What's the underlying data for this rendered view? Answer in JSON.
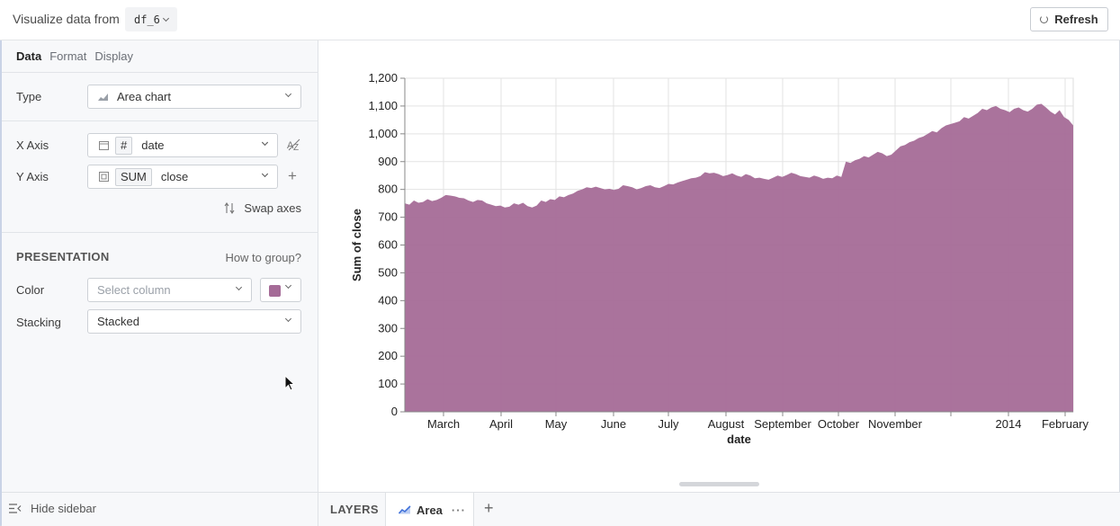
{
  "header": {
    "title": "Visualize data from",
    "dataframe": "df_6",
    "refresh_label": "Refresh"
  },
  "sidebar": {
    "tabs": [
      {
        "label": "Data",
        "active": true
      },
      {
        "label": "Format",
        "active": false
      },
      {
        "label": "Display",
        "active": false
      }
    ],
    "type_label": "Type",
    "type_value": "Area chart",
    "x_axis": {
      "label": "X Axis",
      "type_symbol": "#",
      "column": "date"
    },
    "y_axis": {
      "label": "Y Axis",
      "aggregation": "SUM",
      "column": "close"
    },
    "swap_axes_label": "Swap axes",
    "presentation_heading": "PRESENTATION",
    "how_to_group": "How to group?",
    "color_label": "Color",
    "color_placeholder": "Select column",
    "color_value": "#a56b97",
    "stacking_label": "Stacking",
    "stacking_value": "Stacked"
  },
  "bottom": {
    "hide_sidebar": "Hide sidebar",
    "layers_label": "LAYERS",
    "layer_name": "Area"
  },
  "chart_data": {
    "type": "area",
    "title": "",
    "xlabel": "date",
    "ylabel": "Sum of close",
    "ylim": [
      0,
      1200
    ],
    "yticks": [
      0,
      100,
      200,
      300,
      400,
      500,
      600,
      700,
      800,
      900,
      1000,
      1100,
      1200
    ],
    "xticks": [
      "March",
      "April",
      "May",
      "June",
      "July",
      "August",
      "September",
      "October",
      "November",
      "",
      "2014",
      "February"
    ],
    "grid": true,
    "color": "#a56b97",
    "series": [
      {
        "values": [
          750,
          745,
          760,
          752,
          755,
          765,
          758,
          762,
          770,
          780,
          778,
          775,
          770,
          768,
          760,
          755,
          762,
          760,
          750,
          745,
          740,
          742,
          735,
          738,
          750,
          745,
          752,
          740,
          735,
          742,
          760,
          755,
          765,
          762,
          775,
          772,
          780,
          785,
          795,
          800,
          808,
          805,
          810,
          805,
          800,
          802,
          798,
          802,
          815,
          812,
          808,
          800,
          805,
          812,
          815,
          808,
          805,
          812,
          820,
          818,
          825,
          830,
          835,
          840,
          842,
          848,
          862,
          858,
          860,
          855,
          848,
          852,
          858,
          850,
          845,
          855,
          850,
          840,
          842,
          838,
          835,
          842,
          850,
          845,
          852,
          860,
          855,
          848,
          845,
          842,
          850,
          845,
          838,
          842,
          840,
          850,
          845,
          900,
          895,
          905,
          910,
          920,
          915,
          925,
          935,
          930,
          920,
          925,
          940,
          955,
          960,
          970,
          975,
          985,
          990,
          1000,
          1010,
          1005,
          1020,
          1030,
          1035,
          1040,
          1045,
          1060,
          1055,
          1065,
          1075,
          1090,
          1085,
          1095,
          1100,
          1090,
          1085,
          1078,
          1090,
          1095,
          1085,
          1080,
          1090,
          1105,
          1108,
          1095,
          1080,
          1070,
          1085,
          1060,
          1050,
          1030
        ]
      }
    ]
  }
}
